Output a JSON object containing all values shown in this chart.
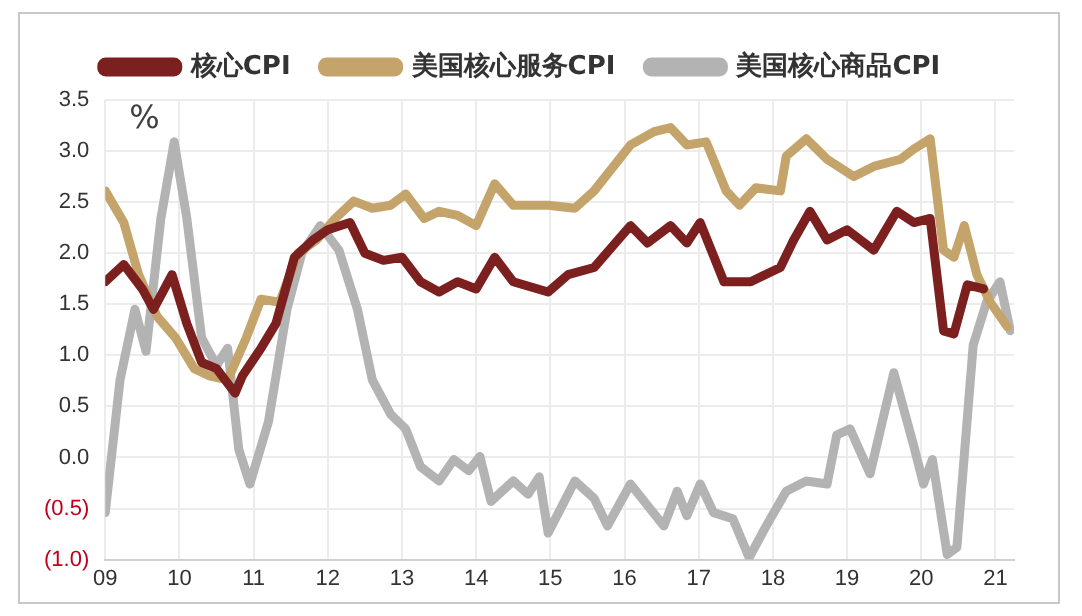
{
  "chart_data": {
    "type": "line",
    "ylabel": "%",
    "legend": "top",
    "grid": true,
    "marker": "none",
    "line_style": "solid",
    "xlim": [
      2009,
      2021.25
    ],
    "xticks": [
      {
        "value": 2009,
        "label": "09"
      },
      {
        "value": 2010,
        "label": "10"
      },
      {
        "value": 2011,
        "label": "11"
      },
      {
        "value": 2012,
        "label": "12"
      },
      {
        "value": 2013,
        "label": "13"
      },
      {
        "value": 2014,
        "label": "14"
      },
      {
        "value": 2015,
        "label": "15"
      },
      {
        "value": 2016,
        "label": "16"
      },
      {
        "value": 2017,
        "label": "17"
      },
      {
        "value": 2018,
        "label": "18"
      },
      {
        "value": 2019,
        "label": "19"
      },
      {
        "value": 2020,
        "label": "20"
      },
      {
        "value": 2021,
        "label": "21"
      }
    ],
    "ylim": [
      -1.0,
      3.5
    ],
    "yticks": [
      {
        "value": -1.0,
        "label": "(1.0)"
      },
      {
        "value": -0.5,
        "label": "(0.5)"
      },
      {
        "value": 0,
        "label": "0.0"
      },
      {
        "value": 0.5,
        "label": "0.5"
      },
      {
        "value": 1.0,
        "label": "1.0"
      },
      {
        "value": 1.5,
        "label": "1.5"
      },
      {
        "value": 2.0,
        "label": "2.0"
      },
      {
        "value": 2.5,
        "label": "2.5"
      },
      {
        "value": 3.0,
        "label": "3.0"
      },
      {
        "value": 3.5,
        "label": "3.5"
      }
    ],
    "series": [
      {
        "name": "核心CPI",
        "color": "#7b1f1f",
        "x": [
          2009.0,
          2009.25,
          2009.5,
          2009.65,
          2009.9,
          2010.1,
          2010.3,
          2010.5,
          2010.75,
          2010.85,
          2011.1,
          2011.3,
          2011.55,
          2011.8,
          2012.0,
          2012.3,
          2012.5,
          2012.75,
          2013.0,
          2013.25,
          2013.5,
          2013.75,
          2014.0,
          2014.25,
          2014.5,
          2014.97,
          2015.24,
          2015.59,
          2016.08,
          2016.31,
          2016.62,
          2016.84,
          2017.02,
          2017.34,
          2017.7,
          2018.1,
          2018.28,
          2018.5,
          2018.73,
          2019.0,
          2019.36,
          2019.67,
          2019.9,
          2020.12,
          2020.3,
          2020.44,
          2020.62,
          2020.84
        ],
        "values": [
          1.72,
          1.89,
          1.65,
          1.45,
          1.79,
          1.31,
          0.93,
          0.87,
          0.63,
          0.8,
          1.07,
          1.31,
          1.96,
          2.13,
          2.23,
          2.3,
          2.0,
          1.93,
          1.96,
          1.72,
          1.62,
          1.72,
          1.65,
          1.96,
          1.72,
          1.62,
          1.79,
          1.86,
          2.27,
          2.1,
          2.27,
          2.1,
          2.3,
          1.72,
          1.72,
          1.86,
          2.13,
          2.41,
          2.13,
          2.23,
          2.03,
          2.41,
          2.3,
          2.34,
          1.24,
          1.21,
          1.69,
          1.65
        ]
      },
      {
        "name": "美国核心服务CPI",
        "color": "#c4a46a",
        "x": [
          2009.0,
          2009.25,
          2009.45,
          2009.7,
          2009.95,
          2010.2,
          2010.4,
          2010.65,
          2010.9,
          2011.1,
          2011.35,
          2011.6,
          2011.85,
          2012.1,
          2012.35,
          2012.6,
          2012.85,
          2013.05,
          2013.3,
          2013.5,
          2013.75,
          2014.0,
          2014.25,
          2014.5,
          2014.97,
          2015.33,
          2015.59,
          2016.08,
          2016.4,
          2016.62,
          2016.84,
          2017.1,
          2017.37,
          2017.55,
          2017.77,
          2018.1,
          2018.18,
          2018.45,
          2018.73,
          2019.09,
          2019.36,
          2019.72,
          2019.9,
          2020.12,
          2020.3,
          2020.44,
          2020.58,
          2020.75,
          2020.93,
          2021.16
        ],
        "values": [
          2.61,
          2.3,
          1.79,
          1.38,
          1.17,
          0.87,
          0.8,
          0.76,
          1.17,
          1.55,
          1.52,
          2.0,
          2.13,
          2.34,
          2.51,
          2.44,
          2.47,
          2.58,
          2.34,
          2.41,
          2.37,
          2.27,
          2.68,
          2.47,
          2.47,
          2.44,
          2.61,
          3.06,
          3.19,
          3.23,
          3.06,
          3.09,
          2.61,
          2.47,
          2.64,
          2.61,
          2.95,
          3.12,
          2.92,
          2.75,
          2.85,
          2.92,
          3.02,
          3.12,
          2.03,
          1.96,
          2.27,
          1.79,
          1.52,
          1.28
        ]
      },
      {
        "name": "美国核心商品CPI",
        "color": "#b3b3b3",
        "x": [
          2009.0,
          2009.2,
          2009.4,
          2009.55,
          2009.75,
          2009.93,
          2010.1,
          2010.3,
          2010.5,
          2010.65,
          2010.8,
          2010.95,
          2011.2,
          2011.45,
          2011.65,
          2011.9,
          2012.15,
          2012.4,
          2012.6,
          2012.85,
          2013.05,
          2013.25,
          2013.5,
          2013.7,
          2013.9,
          2014.05,
          2014.2,
          2014.5,
          2014.7,
          2014.85,
          2014.97,
          2015.33,
          2015.59,
          2015.77,
          2016.08,
          2016.31,
          2016.53,
          2016.71,
          2016.84,
          2017.02,
          2017.2,
          2017.46,
          2017.68,
          2017.91,
          2018.18,
          2018.45,
          2018.73,
          2018.86,
          2019.04,
          2019.31,
          2019.63,
          2019.9,
          2020.03,
          2020.15,
          2020.35,
          2020.48,
          2020.7,
          2020.88,
          2021.06,
          2021.2
        ],
        "values": [
          -0.54,
          0.76,
          1.45,
          1.04,
          2.34,
          3.09,
          2.34,
          1.17,
          0.9,
          1.07,
          0.08,
          -0.26,
          0.35,
          1.45,
          2.0,
          2.27,
          2.03,
          1.45,
          0.76,
          0.42,
          0.28,
          -0.09,
          -0.23,
          -0.02,
          -0.13,
          0.01,
          -0.43,
          -0.23,
          -0.36,
          -0.19,
          -0.74,
          -0.23,
          -0.4,
          -0.67,
          -0.26,
          -0.47,
          -0.67,
          -0.33,
          -0.57,
          -0.26,
          -0.54,
          -0.6,
          -0.98,
          -0.67,
          -0.33,
          -0.23,
          -0.26,
          0.22,
          0.28,
          -0.16,
          0.83,
          0.11,
          -0.26,
          -0.02,
          -0.95,
          -0.88,
          1.1,
          1.52,
          1.72,
          1.24
        ]
      }
    ]
  }
}
